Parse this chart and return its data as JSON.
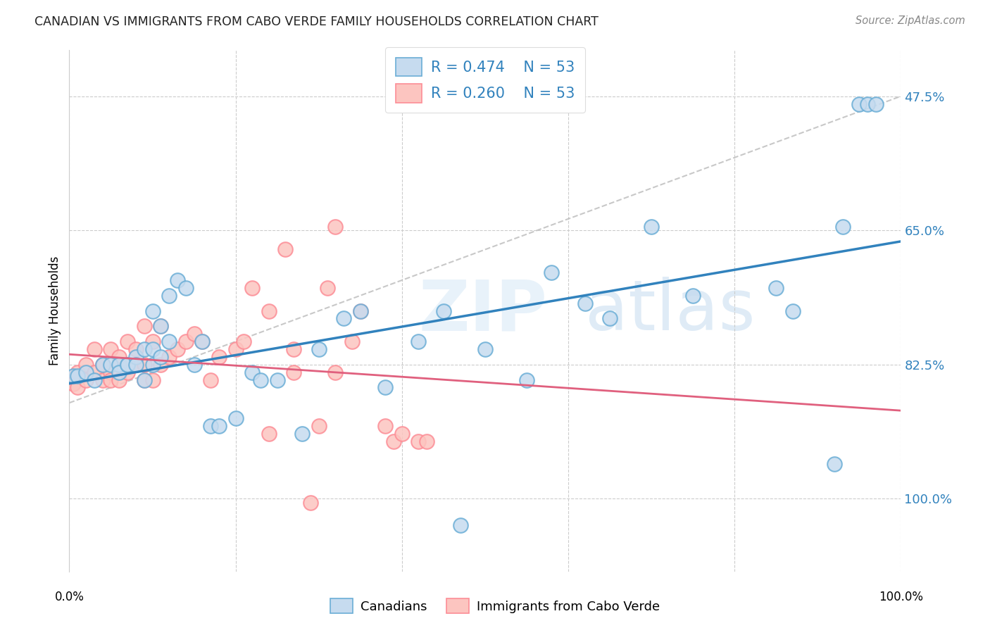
{
  "title": "CANADIAN VS IMMIGRANTS FROM CABO VERDE FAMILY HOUSEHOLDS CORRELATION CHART",
  "source": "Source: ZipAtlas.com",
  "ylabel": "Family Households",
  "right_yticks": [
    "100.0%",
    "82.5%",
    "65.0%",
    "47.5%"
  ],
  "right_ytick_vals": [
    1.0,
    0.825,
    0.65,
    0.475
  ],
  "legend_blue_r": "R = 0.474",
  "legend_blue_n": "N = 53",
  "legend_pink_r": "R = 0.260",
  "legend_pink_n": "N = 53",
  "canadians_label": "Canadians",
  "immigrants_label": "Immigrants from Cabo Verde",
  "blue_marker_face": "#c6dbef",
  "blue_marker_edge": "#6baed6",
  "pink_marker_face": "#fcc5c0",
  "pink_marker_edge": "#fc8d96",
  "blue_line_color": "#3182bd",
  "pink_line_color": "#e0607e",
  "ref_line_color": "#bbbbbb",
  "canadians_x": [
    0.005,
    0.01,
    0.02,
    0.03,
    0.04,
    0.05,
    0.06,
    0.06,
    0.07,
    0.07,
    0.08,
    0.08,
    0.09,
    0.09,
    0.1,
    0.1,
    0.1,
    0.11,
    0.11,
    0.12,
    0.12,
    0.13,
    0.14,
    0.15,
    0.16,
    0.17,
    0.18,
    0.2,
    0.22,
    0.23,
    0.25,
    0.28,
    0.3,
    0.33,
    0.35,
    0.38,
    0.42,
    0.45,
    0.47,
    0.5,
    0.55,
    0.58,
    0.62,
    0.65,
    0.7,
    0.75,
    0.85,
    0.87,
    0.92,
    0.93,
    0.95,
    0.96,
    0.97
  ],
  "canadians_y": [
    0.635,
    0.635,
    0.64,
    0.63,
    0.65,
    0.65,
    0.65,
    0.64,
    0.65,
    0.65,
    0.66,
    0.65,
    0.67,
    0.63,
    0.67,
    0.72,
    0.65,
    0.7,
    0.66,
    0.74,
    0.68,
    0.76,
    0.75,
    0.65,
    0.68,
    0.57,
    0.57,
    0.58,
    0.64,
    0.63,
    0.63,
    0.56,
    0.67,
    0.71,
    0.72,
    0.62,
    0.68,
    0.72,
    0.44,
    0.67,
    0.63,
    0.77,
    0.73,
    0.71,
    0.83,
    0.74,
    0.75,
    0.72,
    0.52,
    0.83,
    0.99,
    0.99,
    0.99
  ],
  "immigrants_x": [
    0.005,
    0.01,
    0.01,
    0.02,
    0.02,
    0.03,
    0.03,
    0.04,
    0.04,
    0.04,
    0.05,
    0.05,
    0.05,
    0.06,
    0.06,
    0.07,
    0.07,
    0.08,
    0.08,
    0.09,
    0.09,
    0.09,
    0.1,
    0.1,
    0.11,
    0.11,
    0.12,
    0.13,
    0.14,
    0.15,
    0.16,
    0.17,
    0.18,
    0.2,
    0.21,
    0.22,
    0.24,
    0.24,
    0.26,
    0.27,
    0.27,
    0.29,
    0.3,
    0.31,
    0.32,
    0.32,
    0.34,
    0.35,
    0.38,
    0.39,
    0.4,
    0.42,
    0.43
  ],
  "immigrants_y": [
    0.625,
    0.62,
    0.64,
    0.63,
    0.65,
    0.67,
    0.64,
    0.65,
    0.63,
    0.65,
    0.67,
    0.64,
    0.63,
    0.66,
    0.63,
    0.68,
    0.64,
    0.67,
    0.65,
    0.7,
    0.65,
    0.63,
    0.68,
    0.63,
    0.7,
    0.65,
    0.66,
    0.67,
    0.68,
    0.69,
    0.68,
    0.63,
    0.66,
    0.67,
    0.68,
    0.75,
    0.56,
    0.72,
    0.8,
    0.67,
    0.64,
    0.47,
    0.57,
    0.75,
    0.83,
    0.64,
    0.68,
    0.72,
    0.57,
    0.55,
    0.56,
    0.55,
    0.55
  ],
  "xlim": [
    0.0,
    1.0
  ],
  "ylim": [
    0.38,
    1.06
  ],
  "ytick_positions": [
    0.475,
    0.65,
    0.825,
    1.0
  ],
  "xtick_positions": [
    0.0,
    0.2,
    0.4,
    0.6,
    0.8,
    1.0
  ]
}
